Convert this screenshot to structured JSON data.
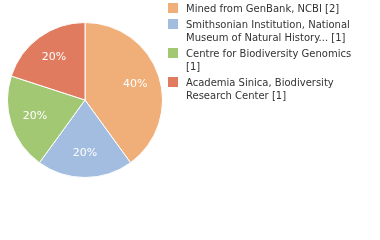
{
  "chart_data": {
    "type": "pie",
    "categories": [
      "Mined from GenBank, NCBI [2]",
      "Smithsonian Institution, National Museum of Natural History... [1]",
      "Centre for Biodiversity Genomics [1]",
      "Academia Sinica, Biodiversity Research Center [1]"
    ],
    "values": [
      40,
      20,
      20,
      20
    ],
    "value_labels": [
      "40%",
      "20%",
      "20%",
      "20%"
    ],
    "colors": [
      "#f0ae78",
      "#a3bde0",
      "#a3c874",
      "#e07b5f"
    ],
    "data_labels": true,
    "legend": "right"
  }
}
